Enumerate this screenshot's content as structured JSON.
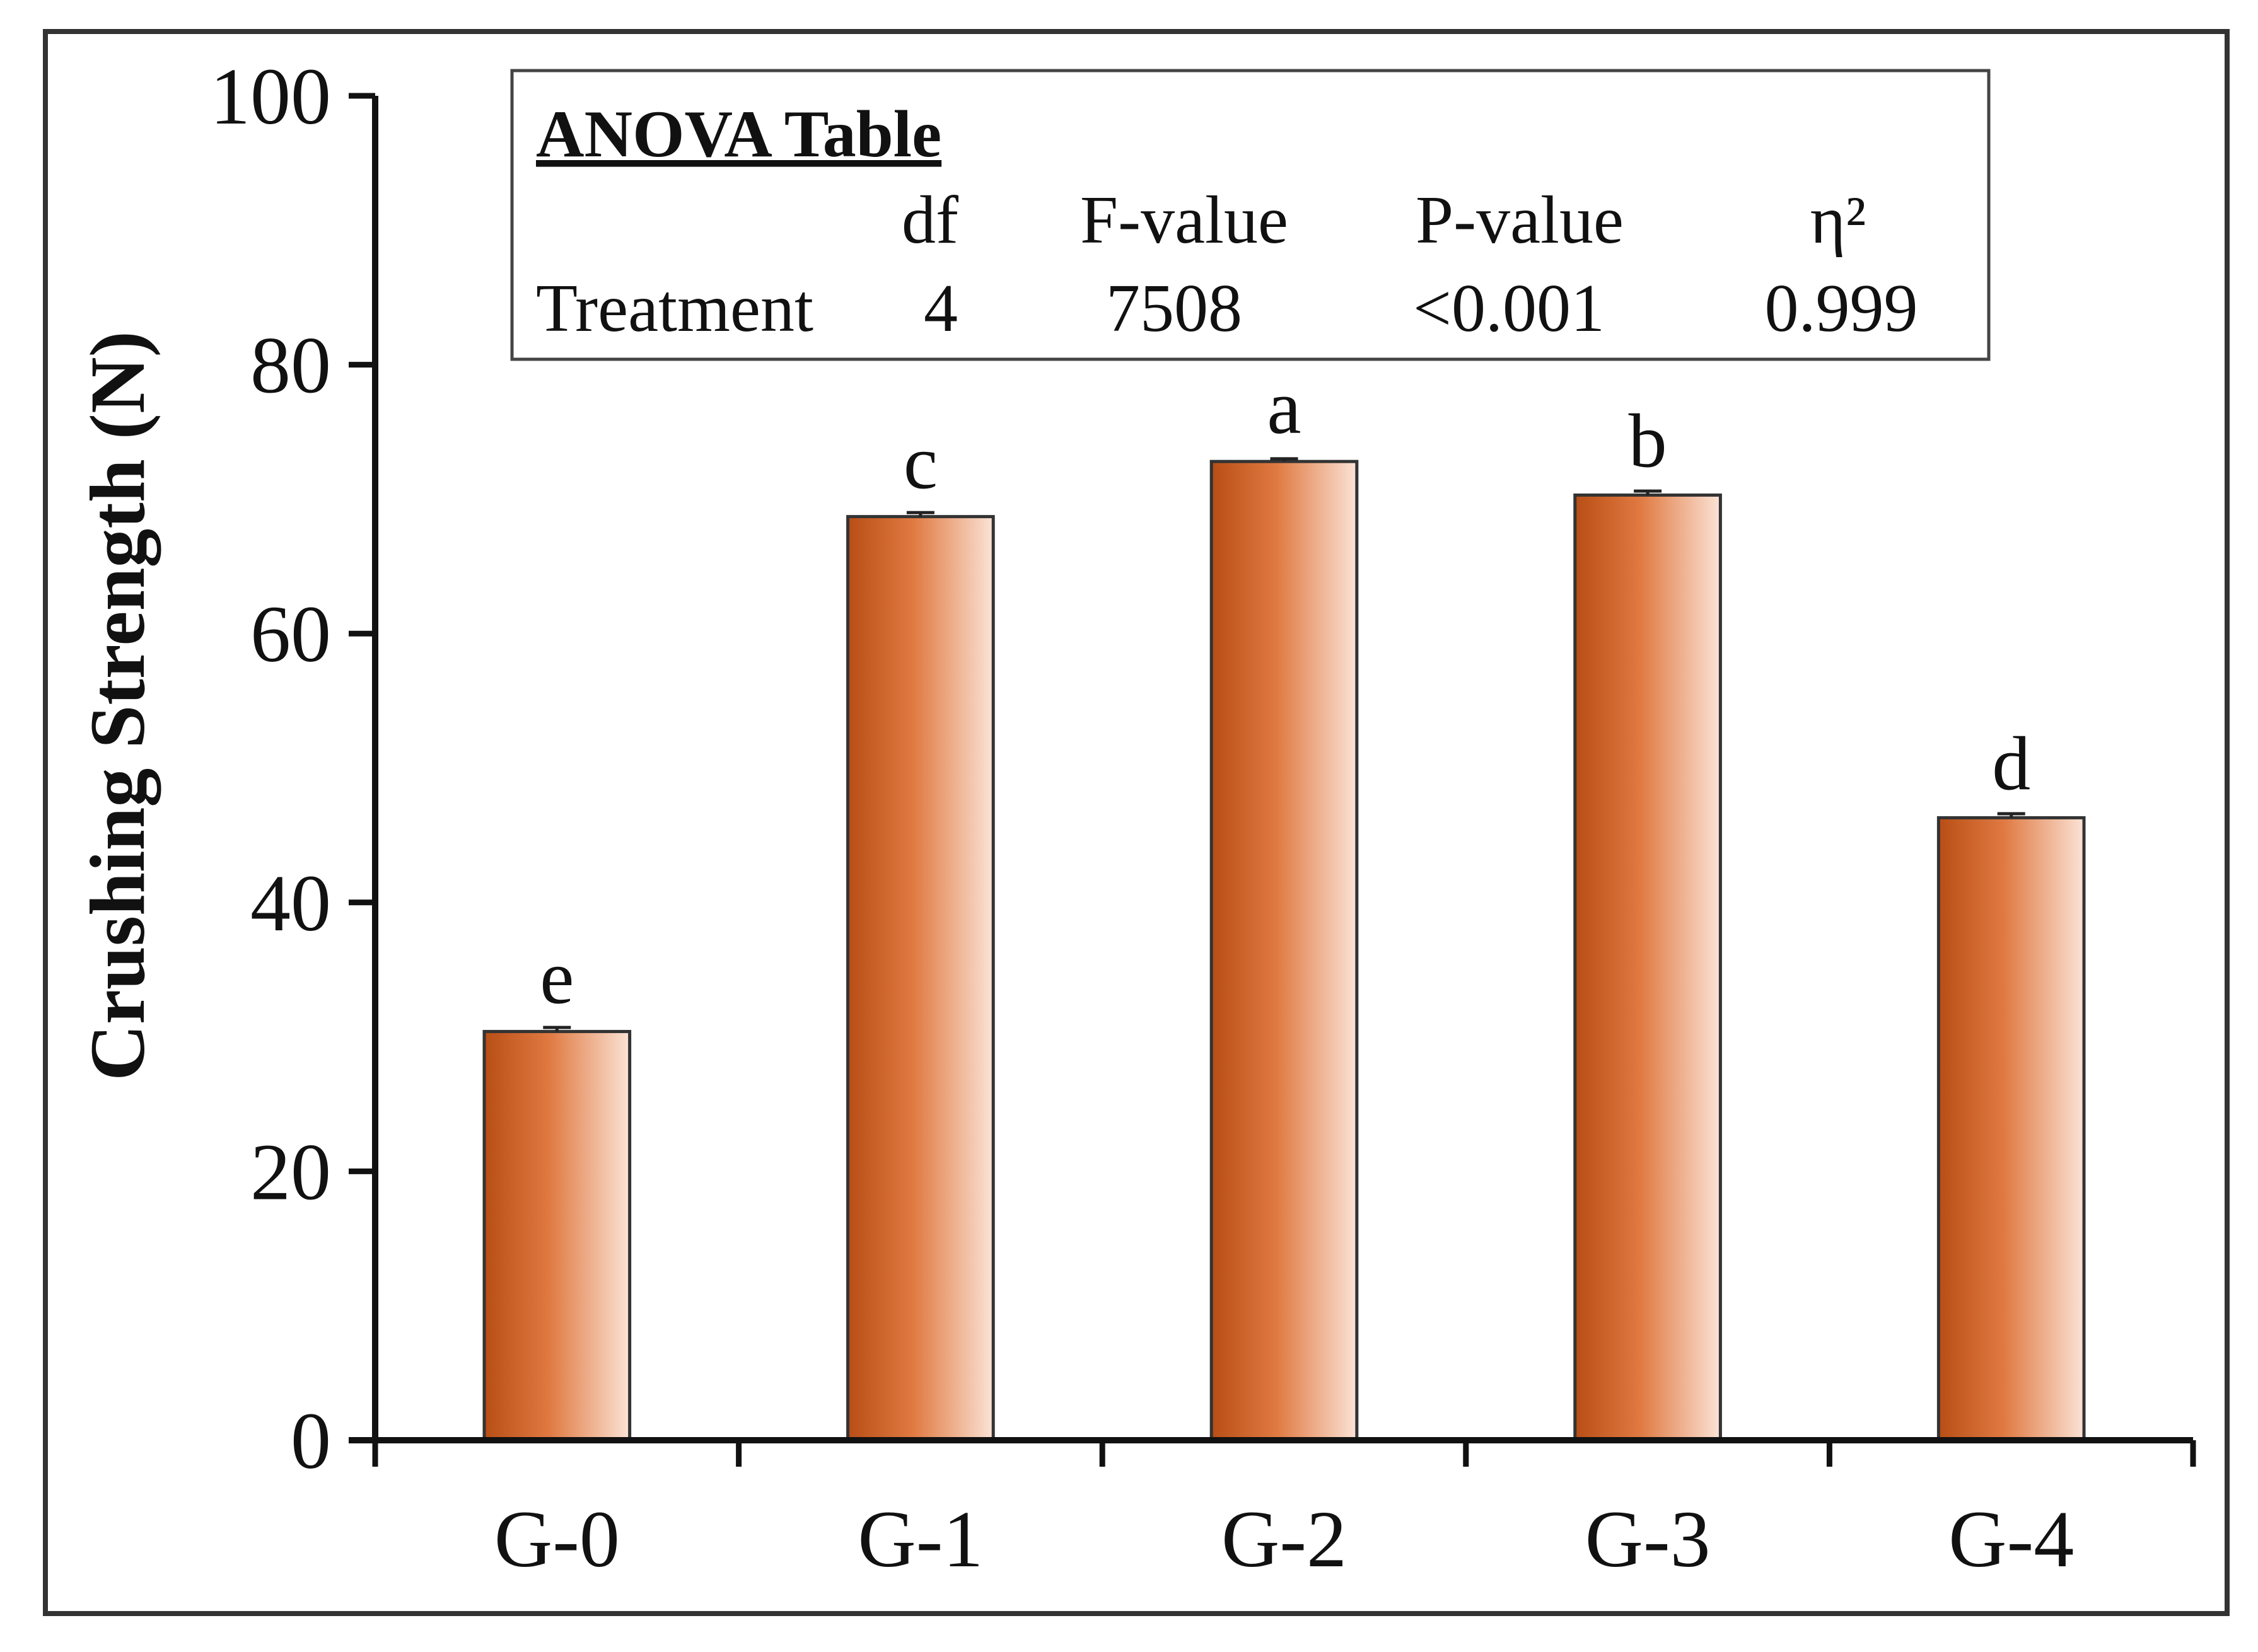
{
  "chart_data": {
    "type": "bar",
    "title": "",
    "xlabel": "",
    "ylabel": "Crushing Strength (N)",
    "ylim": [
      0,
      100
    ],
    "yticks": [
      0,
      20,
      40,
      60,
      80,
      100
    ],
    "categories": [
      "G-0",
      "G-1",
      "G-2",
      "G-3",
      "G-4"
    ],
    "values": [
      30.4,
      68.7,
      72.8,
      70.3,
      46.3
    ],
    "errors": [
      0.3,
      0.3,
      0.2,
      0.3,
      0.3
    ],
    "significance_letters": [
      "e",
      "c",
      "a",
      "b",
      "d"
    ],
    "bar_color": "#d2692f",
    "bar_gradient": [
      "#b84e16",
      "#e07a42",
      "#fbe3d6"
    ],
    "legend": "none"
  },
  "anova": {
    "title": "ANOVA Table",
    "headers": [
      "df",
      "F-value",
      "P-value",
      "η²"
    ],
    "row": {
      "label": "Treatment",
      "values": [
        "4",
        "7508",
        "<0.001",
        "0.999"
      ]
    }
  }
}
